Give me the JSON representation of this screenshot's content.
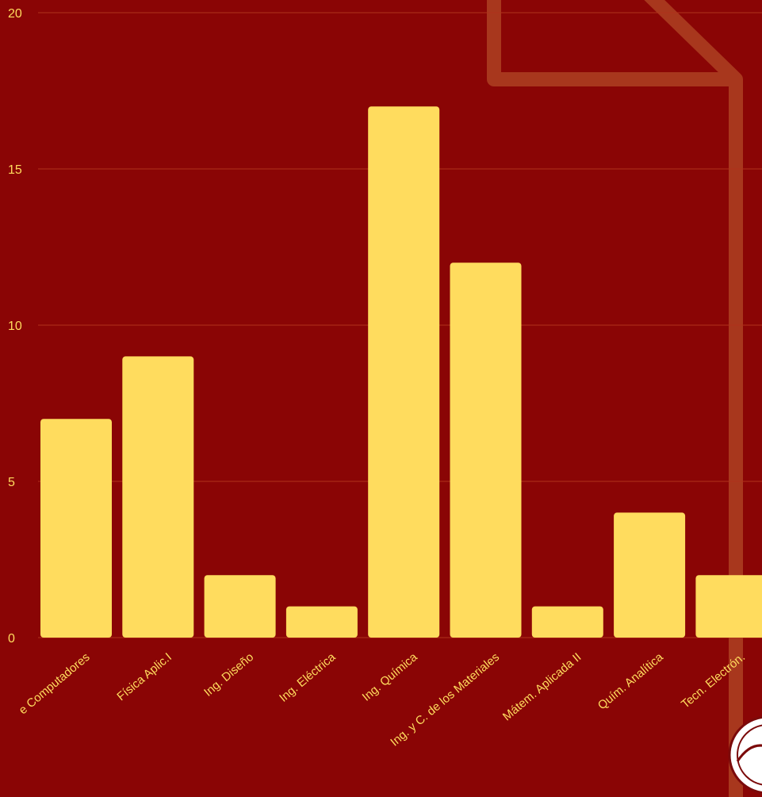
{
  "colors": {
    "background": "#8a0505",
    "bar": "#ffdc5e",
    "gridline": "#b0321a",
    "text": "#ffdc5e",
    "decor_outline": "#a8371d"
  },
  "icons": {
    "corner_logo": "university-seal-logo"
  },
  "chart_data": {
    "type": "bar",
    "title": "",
    "xlabel": "",
    "ylabel": "",
    "ylim": [
      0,
      20
    ],
    "yticks": [
      0,
      5,
      10,
      15,
      20
    ],
    "grid": true,
    "categories": [
      "e Computadores",
      "Física Aplic.I",
      "Ing. Diseño",
      "Ing. Eléctrica",
      "Ing. Química",
      "Ing. y C. de los Materiales",
      "Mátem. Aplicada II",
      "Quím. Analítica",
      "Tecn. Electrón."
    ],
    "values": [
      7,
      9,
      2,
      1,
      17,
      12,
      1,
      4,
      2
    ]
  }
}
